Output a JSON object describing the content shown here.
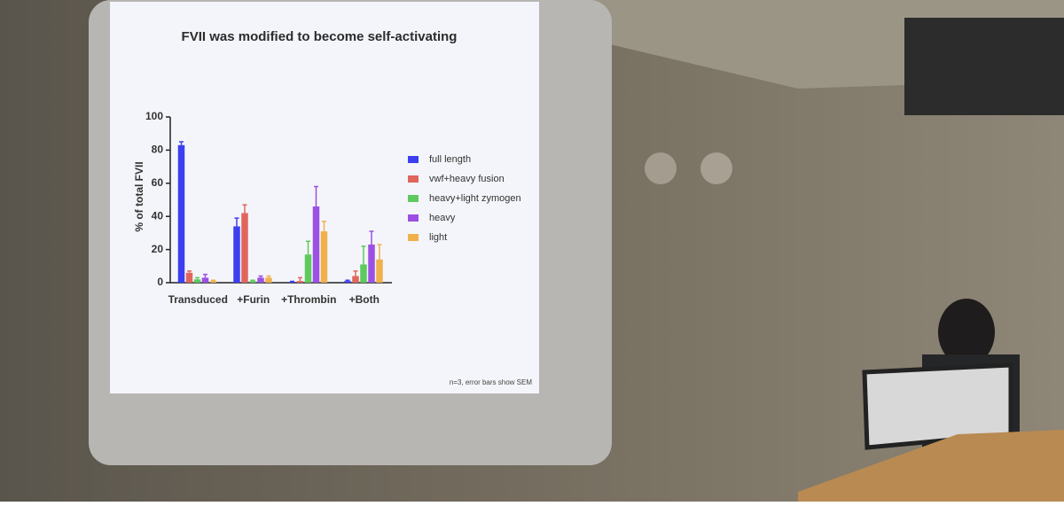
{
  "chart_data": {
    "type": "bar",
    "title": "FVII was modified to become self-activating",
    "y_label": "% of total FVII",
    "note": "n=3, error bars show SEM",
    "categories": [
      "Transduced",
      "+Furin",
      "+Thrombin",
      "+Both"
    ],
    "series": [
      {
        "name": "full length",
        "color": "#3b3ff0",
        "values": [
          83,
          34,
          0.5,
          1
        ],
        "errors": [
          2,
          5,
          0.3,
          0.5
        ]
      },
      {
        "name": "vwf+heavy fusion",
        "color": "#e0665c",
        "values": [
          6,
          42,
          1,
          4
        ],
        "errors": [
          1,
          5,
          2,
          3
        ]
      },
      {
        "name": "heavy+light zymogen",
        "color": "#5ec95e",
        "values": [
          2,
          1,
          17,
          11
        ],
        "errors": [
          1,
          0.5,
          8,
          11
        ]
      },
      {
        "name": "heavy",
        "color": "#9b50e2",
        "values": [
          3,
          3,
          46,
          23
        ],
        "errors": [
          2,
          1,
          12,
          8
        ]
      },
      {
        "name": "light",
        "color": "#f0b04c",
        "values": [
          1,
          3,
          31,
          14
        ],
        "errors": [
          0.5,
          1,
          6,
          9
        ]
      }
    ],
    "ylim": [
      0,
      100
    ],
    "yticks": [
      0,
      20,
      40,
      60,
      80,
      100
    ],
    "grid": false,
    "legend": "right"
  }
}
